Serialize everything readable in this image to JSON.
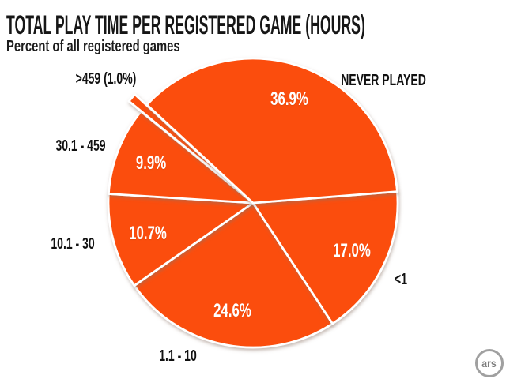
{
  "header": {
    "title": "TOTAL PLAY TIME PER REGISTERED GAME (HOURS)",
    "subtitle": "Percent of all registered games"
  },
  "branding": {
    "logo_text": "ars"
  },
  "colors": {
    "slice": "#FB4E0B",
    "separator": "#FFFFFF",
    "category_label": "#111111",
    "percent_label": "#FFFFFF",
    "shadow": "#8a7265",
    "logo_ring": "#a0a0a0",
    "logo_text": "#7d7d7d",
    "background": "#FFFFFF"
  },
  "chart_data": {
    "type": "pie",
    "title": "TOTAL PLAY TIME PER REGISTERED GAME (HOURS)",
    "subtitle": "Percent of all registered games",
    "units": "percent of all registered games",
    "start_angle_deg": -4.5,
    "direction": "clockwise",
    "legend_position": "outside-labels",
    "slices": [
      {
        "label": "<1",
        "value": 17.0,
        "value_label": "17.0%",
        "exploded": false
      },
      {
        "label": "1.1 - 10",
        "value": 24.6,
        "value_label": "24.6%",
        "exploded": false
      },
      {
        "label": "10.1 - 30",
        "value": 10.7,
        "value_label": "10.7%",
        "exploded": false
      },
      {
        "label": "30.1 - 459",
        "value": 9.9,
        "value_label": "9.9%",
        "exploded": false
      },
      {
        "label": ">459 (1.0%)",
        "value": 1.0,
        "value_label": "1.0%",
        "exploded": true
      },
      {
        "label": "NEVER PLAYED",
        "value": 36.9,
        "value_label": "36.9%",
        "exploded": false
      }
    ]
  }
}
